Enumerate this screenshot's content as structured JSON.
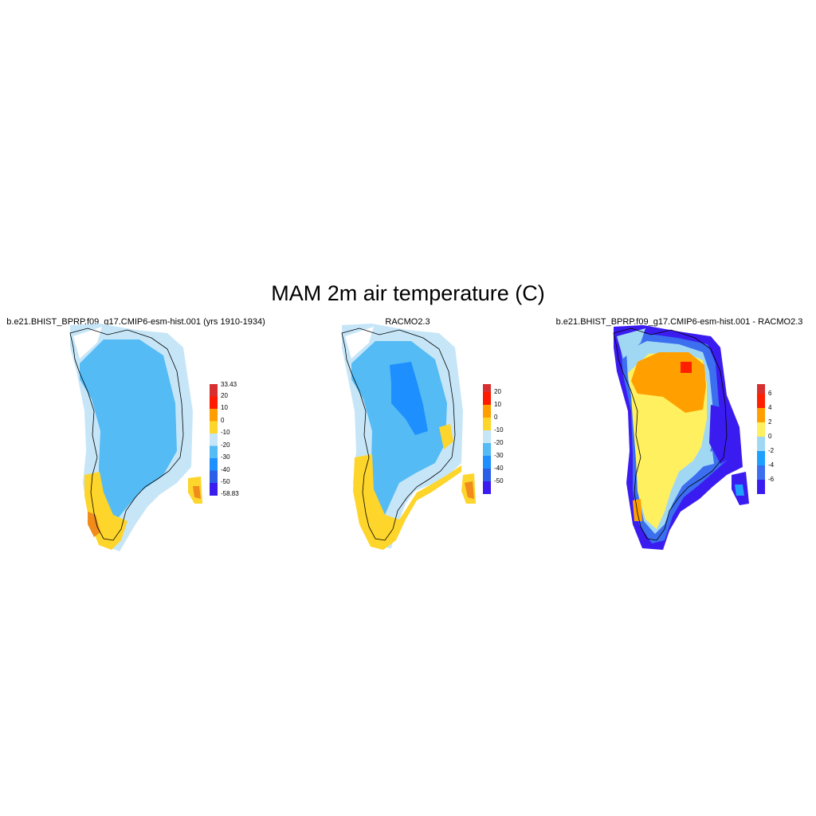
{
  "figure": {
    "title": "MAM 2m air temperature (C)"
  },
  "panels": [
    {
      "title": "b.e21.BHIST_BPRP.f09_g17.CMIP6-esm-hist.001 (yrs 1910-1934)",
      "colorbar": {
        "colors": [
          "#3b1cf0",
          "#2b5fe8",
          "#1e8fff",
          "#55bbf4",
          "#c6e6f8",
          "#fdd52b",
          "#ff9e00",
          "#ff1a00",
          "#d83030"
        ],
        "labels": [
          "33.43",
          "20",
          "10",
          "0",
          "-10",
          "-20",
          "-30",
          "-40",
          "-50",
          "-58.83"
        ]
      }
    },
    {
      "title": "RACMO2.3",
      "colorbar": {
        "colors": [
          "#3b1cf0",
          "#2b5fe8",
          "#1e8fff",
          "#55bbf4",
          "#c6e6f8",
          "#fdd52b",
          "#ff9e00",
          "#ff1a00",
          "#d83030"
        ],
        "labels": [
          "20",
          "10",
          "0",
          "-10",
          "-20",
          "-30",
          "-40",
          "-50"
        ]
      }
    },
    {
      "title": "b.e21.BHIST_BPRP.f09_g17.CMIP6-esm-hist.001 - RACMO2.3",
      "colorbar": {
        "colors": [
          "#3b1cf0",
          "#3b6ff0",
          "#1ea0ff",
          "#a0d8f4",
          "#fff060",
          "#ffa000",
          "#ff2000",
          "#d83030"
        ],
        "labels": [
          "6",
          "4",
          "2",
          "0",
          "-2",
          "-4",
          "-6"
        ]
      }
    }
  ]
}
